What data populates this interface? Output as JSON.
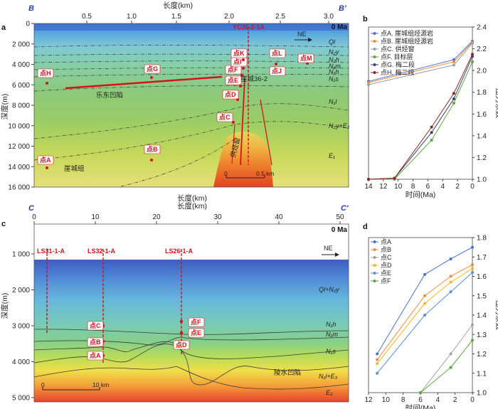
{
  "panels": {
    "a": {
      "letter": "a",
      "section_start": "B",
      "section_end": "B'",
      "time_label": "0 Ma",
      "x_title": "长度(km)",
      "y_title": "深度(m)",
      "x_ticks": [
        "0.5",
        "1.0",
        "1.5",
        "2.0",
        "2.5",
        "3.0"
      ],
      "y_ticks": [
        "0",
        "2 000",
        "4 000",
        "6 000",
        "8 000",
        "10 000",
        "12 000",
        "14 000",
        "16 000"
      ],
      "direction": "NE",
      "well_label": "YC36-2-1A",
      "field_label": "崖城36-2",
      "basin_label": "乐东凹陷",
      "window_label": "供烃窗",
      "formation_label": "崖城组",
      "scale_label_start": "0",
      "scale_label_end": "0.5 km",
      "strata": [
        "Ql",
        "N₂y",
        "N₂h",
        "N₁m",
        "N₁h",
        "N₁s",
        "N₁l",
        "N₂y+E₂",
        "E₁"
      ],
      "points": [
        "点A",
        "点B",
        "点C",
        "点D",
        "点E",
        "点F",
        "点G",
        "点H",
        "点I",
        "点J",
        "点K",
        "点L",
        "点M"
      ]
    },
    "b": {
      "letter": "b",
      "x_title": "时间(Ma)",
      "y_title": "压力系数",
      "x_ticks": [
        "14",
        "12",
        "10",
        "8",
        "6",
        "4",
        "2",
        "0"
      ],
      "y_ticks": [
        "1.0",
        "1.2",
        "1.4",
        "1.6",
        "1.8",
        "2.0",
        "2.2",
        "2.4"
      ]
    },
    "c": {
      "letter": "c",
      "section_start": "C",
      "section_end": "C'",
      "time_label": "0 Ma",
      "x_title": "长度(km)",
      "y_title": "深度(m)",
      "x_ticks": [
        "0",
        "10",
        "20",
        "30",
        "40",
        "50"
      ],
      "y_ticks": [
        "1 000",
        "2 000",
        "3 000",
        "4 000",
        "5 000"
      ],
      "direction": "NE",
      "wells": [
        "LS31-1-A",
        "LS32-1-A",
        "LS26-1-A"
      ],
      "basin_label": "陵水凹陷",
      "scale_label_start": "0",
      "scale_label_end": "10 km",
      "strata": [
        "Ql+N₂y",
        "N₁h",
        "N₁m",
        "N₁s",
        "N₁l+E₃",
        "E₂"
      ],
      "points": [
        "点A",
        "点B",
        "点C",
        "点D",
        "点E",
        "点F"
      ]
    },
    "d": {
      "letter": "d",
      "x_title": "时间(Ma)",
      "y_title": "压力系数",
      "x_ticks": [
        "12",
        "10",
        "8",
        "6",
        "4",
        "2",
        "0"
      ],
      "y_ticks": [
        "1.0",
        "1.1",
        "1.2",
        "1.3",
        "1.4",
        "1.5",
        "1.6",
        "1.7",
        "1.8"
      ]
    }
  },
  "chart_data": [
    {
      "panel": "b",
      "type": "line",
      "xlabel": "时间(Ma)",
      "ylabel": "压力系数",
      "xlim": [
        14,
        0
      ],
      "ylim": [
        1.0,
        2.4
      ],
      "legend_position": "top-left",
      "series": [
        {
          "name": "点A. 崖城组烃源岩",
          "color": "#4a6fd0",
          "x": [
            14,
            2.5,
            0
          ],
          "y": [
            1.9,
            2.1,
            2.27
          ]
        },
        {
          "name": "点B. 崖城组烃源岩",
          "color": "#f08a3c",
          "x": [
            14,
            2.5,
            0
          ],
          "y": [
            1.89,
            2.08,
            2.26
          ]
        },
        {
          "name": "点C. 供烃窗",
          "color": "#a0a0a0",
          "x": [
            14,
            2.5,
            0
          ],
          "y": [
            1.87,
            2.05,
            2.25
          ]
        },
        {
          "name": "点F. 目标层",
          "color": "#5aa63c",
          "x": [
            14,
            10.5,
            5.5,
            2.5,
            0
          ],
          "y": [
            1.0,
            1.0,
            1.36,
            1.7,
            2.08
          ]
        },
        {
          "name": "点G. 梅二段",
          "color": "#3a3f7a",
          "x": [
            14,
            10.5,
            5.5,
            2.5,
            0
          ],
          "y": [
            1.0,
            1.01,
            1.43,
            1.74,
            2.13
          ]
        },
        {
          "name": "点H. 梅二段",
          "color": "#8b2a1e",
          "x": [
            14,
            10.5,
            5.5,
            2.5,
            0
          ],
          "y": [
            1.0,
            1.01,
            1.48,
            1.79,
            2.15
          ]
        }
      ]
    },
    {
      "panel": "d",
      "type": "line",
      "xlabel": "时间(Ma)",
      "ylabel": "压力系数",
      "xlim": [
        12,
        0
      ],
      "ylim": [
        1.0,
        1.8
      ],
      "legend_position": "top-left",
      "series": [
        {
          "name": "点A",
          "color": "#4a6fd0",
          "x": [
            11,
            5.5,
            2.5,
            0
          ],
          "y": [
            1.2,
            1.61,
            1.69,
            1.75
          ]
        },
        {
          "name": "点B",
          "color": "#f08a3c",
          "x": [
            11,
            5.5,
            2.5,
            0
          ],
          "y": [
            1.17,
            1.5,
            1.6,
            1.66
          ]
        },
        {
          "name": "点C",
          "color": "#a0a0a0",
          "x": [
            6,
            2.5,
            0
          ],
          "y": [
            1.0,
            1.2,
            1.35
          ]
        },
        {
          "name": "点D",
          "color": "#f0b820",
          "x": [
            11,
            5.5,
            2.5,
            0
          ],
          "y": [
            1.15,
            1.46,
            1.57,
            1.64
          ]
        },
        {
          "name": "点E",
          "color": "#5b8fd8",
          "x": [
            11,
            5.5,
            2.5,
            0
          ],
          "y": [
            1.1,
            1.4,
            1.52,
            1.62
          ]
        },
        {
          "name": "点F",
          "color": "#5aa63c",
          "x": [
            6,
            2.5,
            0
          ],
          "y": [
            1.0,
            1.13,
            1.27
          ]
        }
      ]
    }
  ]
}
